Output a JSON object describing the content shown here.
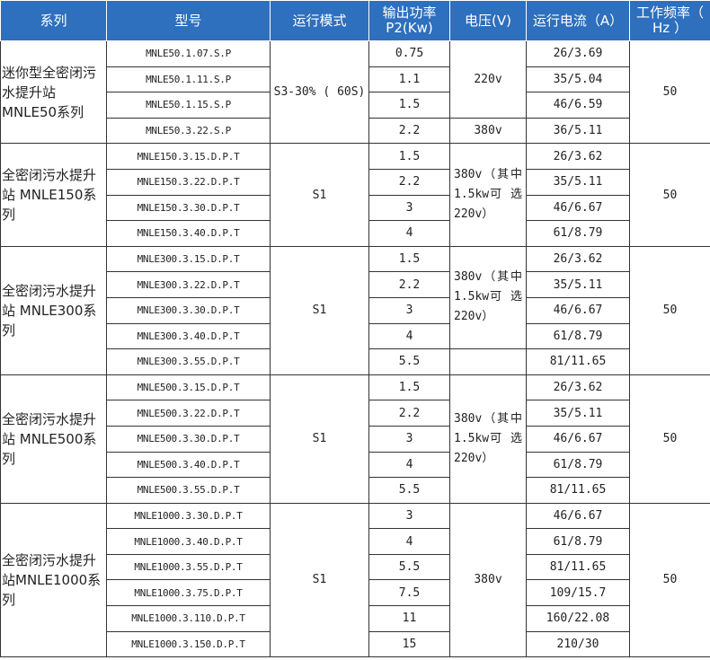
{
  "headers": [
    "系列",
    "型号",
    "运行模式",
    "输出功率P2(Kw)",
    "电压(V)",
    "运行电流（A）",
    "工作频率（ Hz ）"
  ],
  "groups": [
    {
      "series": "迷你型全密闭污水提升站MNLE50系列",
      "mode": "S3-30% ( 60S)",
      "freq": "50",
      "rows": [
        [
          "MNLE50.1.07.S.P",
          "0.75",
          "26/3.69"
        ],
        [
          "MNLE50.1.11.S.P",
          "1.1",
          "35/5.04"
        ],
        [
          "MNLE50.1.15.S.P",
          "1.5",
          "46/6.59"
        ],
        [
          "MNLE50.3.22.S.P",
          "2.2",
          "36/5.11"
        ]
      ],
      "voltages": [
        {
          "text": "220v",
          "span": 3
        },
        {
          "text": "380v",
          "span": 1
        }
      ]
    },
    {
      "series": "全密闭污水提升站 MNLE150系列",
      "mode": "S1",
      "freq": "50",
      "rows": [
        [
          "MNLE150.3.15.D.P.T",
          "1.5",
          "26/3.62"
        ],
        [
          "MNLE150.3.22.D.P.T",
          "2.2",
          "35/5.11"
        ],
        [
          "MNLE150.3.30.D.P.T",
          "3",
          "46/6.67"
        ],
        [
          "MNLE150.3.40.D.P.T",
          "4",
          "61/8.79"
        ]
      ],
      "voltages": [
        {
          "text": "380v（其中 1.5kw可 选220v）",
          "span": 4
        }
      ]
    },
    {
      "series": "全密闭污水提升站 MNLE300系列",
      "mode": "S1",
      "freq": "50",
      "rows": [
        [
          "MNLE300.3.15.D.P.T",
          "1.5",
          "26/3.62"
        ],
        [
          "MNLE300.3.22.D.P.T",
          "2.2",
          "35/5.11"
        ],
        [
          "MNLE300.3.30.D.P.T",
          "3",
          "46/6.67"
        ],
        [
          "MNLE300.3.40.D.P.T",
          "4",
          "61/8.79"
        ],
        [
          "MNLE300.3.55.D.P.T",
          "5.5",
          "81/11.65"
        ]
      ],
      "voltages": [
        {
          "text": "380v（其中 1.5kw可 选220v）",
          "span": 4
        },
        {
          "text": "",
          "span": 1
        }
      ]
    },
    {
      "series": "全密闭污水提升站 MNLE500系列",
      "mode": "S1",
      "freq": "50",
      "rows": [
        [
          "MNLE500.3.15.D.P.T",
          "1.5",
          "26/3.62"
        ],
        [
          "MNLE500.3.22.D.P.T",
          "2.2",
          "35/5.11"
        ],
        [
          "MNLE500.3.30.D.P.T",
          "3",
          "46/6.67"
        ],
        [
          "MNLE500.3.40.D.P.T",
          "4",
          "61/8.79"
        ],
        [
          "MNLE500.3.55.D.P.T",
          "5.5",
          "81/11.65"
        ]
      ],
      "voltages": [
        {
          "text": "380v（其中 1.5kw可 选220v）",
          "span": 5
        }
      ]
    },
    {
      "series": "全密闭污水提升站MNLE1000系列",
      "mode": "S1",
      "freq": "50",
      "rows": [
        [
          "MNLE1000.3.30.D.P.T",
          "3",
          "46/6.67"
        ],
        [
          "MNLE1000.3.40.D.P.T",
          "4",
          "61/8.79"
        ],
        [
          "MNLE1000.3.55.D.P.T",
          "5.5",
          "81/11.65"
        ],
        [
          "MNLE1000.3.75.D.P.T",
          "7.5",
          "109/15.7"
        ],
        [
          "MNLE1000.3.110.D.P.T",
          "11",
          "160/22.08"
        ],
        [
          "MNLE1000.3.150.D.P.T",
          "15",
          "210/30"
        ]
      ],
      "voltages": [
        {
          "text": "380v",
          "span": 6
        }
      ]
    }
  ]
}
